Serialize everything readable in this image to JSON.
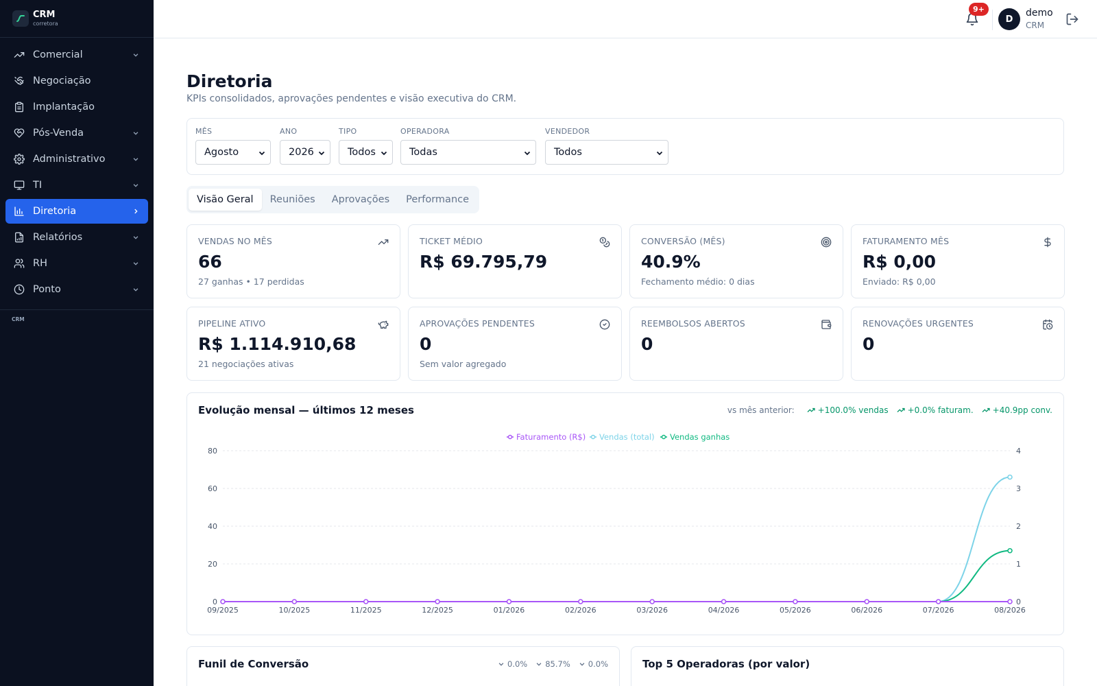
{
  "brand": {
    "title": "CRM",
    "subtitle": "corretora"
  },
  "sidebar": {
    "items": [
      {
        "label": "Comercial",
        "icon": "trending-up-icon",
        "chevron": "down"
      },
      {
        "label": "Negociação",
        "icon": "handshake-icon",
        "chevron": ""
      },
      {
        "label": "Implantação",
        "icon": "clipboard-icon",
        "chevron": ""
      },
      {
        "label": "Pós-Venda",
        "icon": "heart-handshake-icon",
        "chevron": "down"
      },
      {
        "label": "Administrativo",
        "icon": "gear-icon",
        "chevron": "down"
      },
      {
        "label": "TI",
        "icon": "monitor-icon",
        "chevron": "down"
      },
      {
        "label": "Diretoria",
        "icon": "bar-chart-icon",
        "chevron": "right",
        "active": true
      },
      {
        "label": "Relatórios",
        "icon": "file-chart-icon",
        "chevron": "down"
      },
      {
        "label": "RH",
        "icon": "users-icon",
        "chevron": "down"
      },
      {
        "label": "Ponto",
        "icon": "clock-icon",
        "chevron": "down"
      }
    ],
    "footer": "CRM"
  },
  "header": {
    "notifications_badge": "9+",
    "user_initial": "D",
    "user_name": "demo",
    "user_role": "CRM"
  },
  "page": {
    "title": "Diretoria",
    "subtitle": "KPIs consolidados, aprovações pendentes e visão executiva do CRM."
  },
  "filters": {
    "mes": {
      "label": "MÊS",
      "value": "Agosto"
    },
    "ano": {
      "label": "ANO",
      "value": "2026"
    },
    "tipo": {
      "label": "TIPO",
      "value": "Todos"
    },
    "operadora": {
      "label": "OPERADORA",
      "value": "Todas"
    },
    "vendedor": {
      "label": "VENDEDOR",
      "value": "Todos"
    }
  },
  "tabs": [
    "Visão Geral",
    "Reuniões",
    "Aprovações",
    "Performance"
  ],
  "kpis": [
    {
      "label": "VENDAS NO MÊS",
      "value": "66",
      "sub": "27 ganhas • 17 perdidas",
      "icon": "trending-up-icon"
    },
    {
      "label": "TICKET MÉDIO",
      "value": "R$ 69.795,79",
      "sub": "",
      "icon": "coins-icon"
    },
    {
      "label": "CONVERSÃO (MÊS)",
      "value": "40.9%",
      "sub": "Fechamento médio: 0 dias",
      "icon": "target-icon"
    },
    {
      "label": "FATURAMENTO MÊS",
      "value": "R$ 0,00",
      "sub": "Enviado: R$ 0,00",
      "icon": "dollar-icon"
    },
    {
      "label": "PIPELINE ATIVO",
      "value": "R$ 1.114.910,68",
      "sub": "21 negociações ativas",
      "icon": "piggy-bank-icon"
    },
    {
      "label": "APROVAÇÕES PENDENTES",
      "value": "0",
      "sub": "Sem valor agregado",
      "icon": "check-circle-icon"
    },
    {
      "label": "REEMBOLSOS ABERTOS",
      "value": "0",
      "sub": "",
      "icon": "wallet-icon"
    },
    {
      "label": "RENOVAÇÕES URGENTES",
      "value": "0",
      "sub": "",
      "icon": "calendar-clock-icon"
    }
  ],
  "comparison": {
    "label": "vs mês anterior:",
    "items": [
      "+100.0% vendas",
      "+0.0% faturam.",
      "+40.9pp conv."
    ]
  },
  "chart_data": {
    "type": "line",
    "title": "Evolução mensal — últimos 12 meses",
    "categories": [
      "09/2025",
      "10/2025",
      "11/2025",
      "12/2025",
      "01/2026",
      "02/2026",
      "03/2026",
      "04/2026",
      "05/2026",
      "06/2026",
      "07/2026",
      "08/2026"
    ],
    "y_left": {
      "ticks": [
        0,
        20,
        40,
        60,
        80
      ],
      "range": [
        0,
        80
      ]
    },
    "y_right": {
      "ticks": [
        0,
        1,
        2,
        3,
        4
      ],
      "range": [
        0,
        4
      ]
    },
    "legend_position": "top-center",
    "grid": true,
    "series": [
      {
        "name": "Faturamento (R$)",
        "axis": "right",
        "color": "#a855f7",
        "values": [
          0,
          0,
          0,
          0,
          0,
          0,
          0,
          0,
          0,
          0,
          0,
          0
        ]
      },
      {
        "name": "Vendas (total)",
        "axis": "left",
        "color": "#7dd3e8",
        "values": [
          0,
          0,
          0,
          0,
          0,
          0,
          0,
          0,
          0,
          0,
          0,
          66
        ]
      },
      {
        "name": "Vendas ganhas",
        "axis": "left",
        "color": "#10b981",
        "values": [
          0,
          0,
          0,
          0,
          0,
          0,
          0,
          0,
          0,
          0,
          0,
          27
        ]
      }
    ]
  },
  "funnel": {
    "title": "Funil de Conversão",
    "stats": [
      "0.0%",
      "85.7%",
      "0.0%"
    ]
  },
  "top_operadoras": {
    "title": "Top 5 Operadoras (por valor)"
  }
}
